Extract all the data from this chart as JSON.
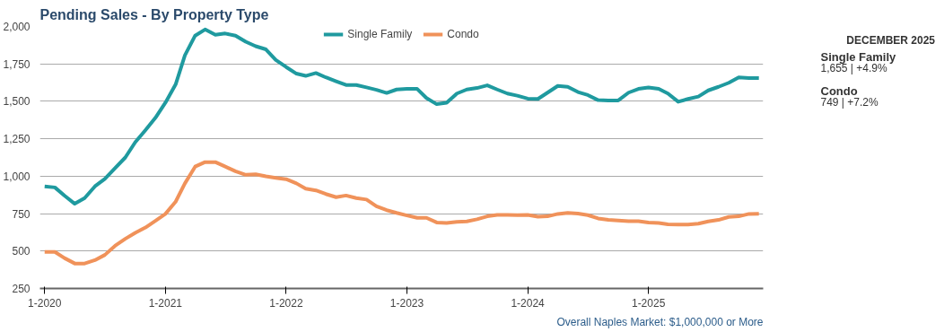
{
  "chart_data": [
    {
      "type": "line",
      "title": "Pending Sales - By Property Type",
      "x": [
        "2020-01",
        "2020-02",
        "2020-03",
        "2020-04",
        "2020-05",
        "2020-06",
        "2020-07",
        "2020-08",
        "2020-09",
        "2020-10",
        "2020-11",
        "2020-12",
        "2021-01",
        "2021-02",
        "2021-03",
        "2021-04",
        "2021-05",
        "2021-06",
        "2021-07",
        "2021-08",
        "2021-09",
        "2021-10",
        "2021-11",
        "2021-12",
        "2022-01",
        "2022-02",
        "2022-03",
        "2022-04",
        "2022-05",
        "2022-06",
        "2022-07",
        "2022-08",
        "2022-09",
        "2022-10",
        "2022-11",
        "2022-12",
        "2023-01",
        "2023-02",
        "2023-03",
        "2023-04",
        "2023-05",
        "2023-06",
        "2023-07",
        "2023-08",
        "2023-09",
        "2023-10",
        "2023-11",
        "2023-12",
        "2024-01",
        "2024-02",
        "2024-03",
        "2024-04",
        "2024-05",
        "2024-06",
        "2024-07",
        "2024-08",
        "2024-09",
        "2024-10",
        "2024-11",
        "2024-12",
        "2025-01",
        "2025-02",
        "2025-03",
        "2025-04",
        "2025-05",
        "2025-06",
        "2025-07",
        "2025-08",
        "2025-09",
        "2025-10",
        "2025-11",
        "2025-12"
      ],
      "series": [
        {
          "name": "Single Family",
          "color": "#1f9a9f",
          "values": [
            932,
            925,
            870,
            816,
            854,
            932,
            982,
            1054,
            1125,
            1227,
            1308,
            1390,
            1491,
            1613,
            1807,
            1939,
            1980,
            1945,
            1953,
            1939,
            1898,
            1868,
            1847,
            1776,
            1729,
            1685,
            1670,
            1689,
            1660,
            1634,
            1609,
            1609,
            1593,
            1577,
            1556,
            1579,
            1583,
            1583,
            1522,
            1481,
            1491,
            1552,
            1579,
            1589,
            1607,
            1579,
            1552,
            1538,
            1518,
            1516,
            1558,
            1603,
            1597,
            1562,
            1542,
            1508,
            1506,
            1506,
            1558,
            1583,
            1593,
            1583,
            1552,
            1497,
            1516,
            1532,
            1573,
            1597,
            1624,
            1660,
            1656,
            1655
          ]
        },
        {
          "name": "Condo",
          "color": "#f0925a",
          "values": [
            494,
            494,
            453,
            417,
            417,
            439,
            474,
            535,
            582,
            622,
            657,
            702,
            748,
            830,
            952,
            1064,
            1094,
            1094,
            1064,
            1033,
            1009,
            1013,
            999,
            989,
            980,
            952,
            917,
            905,
            881,
            860,
            871,
            854,
            844,
            799,
            773,
            755,
            738,
            722,
            722,
            691,
            687,
            695,
            698,
            712,
            732,
            742,
            742,
            740,
            742,
            730,
            732,
            748,
            755,
            750,
            740,
            718,
            708,
            704,
            700,
            700,
            691,
            687,
            679,
            677,
            677,
            683,
            698,
            708,
            728,
            732,
            748,
            749
          ]
        }
      ],
      "xlim": [
        "2019-12-18",
        "2025-12-14"
      ],
      "xticks": [
        {
          "value": "2020-01",
          "label": "1-2020"
        },
        {
          "value": "2021-01",
          "label": "1-2021"
        },
        {
          "value": "2022-01",
          "label": "1-2022"
        },
        {
          "value": "2023-01",
          "label": "1-2023"
        },
        {
          "value": "2024-01",
          "label": "1-2024"
        },
        {
          "value": "2025-01",
          "label": "1-2025"
        }
      ],
      "ylim": [
        250,
        2000
      ],
      "yticks": [
        250,
        500,
        750,
        {
          "value": 1000,
          "label": "1,000"
        },
        {
          "value": 1250,
          "label": "1,250"
        },
        {
          "value": 1500,
          "label": "1,500"
        },
        {
          "value": 1750,
          "label": "1,750"
        },
        {
          "value": 2000,
          "label": "2,000"
        }
      ],
      "grid": "y",
      "legend": "top",
      "line_style": "solid",
      "marker": "none",
      "annotations": [
        "Overall Naples Market: $1,000,000 or More"
      ]
    },
    {
      "type": "other",
      "title": "DECEMBER 2025",
      "annotations": [
        "Single Family",
        "1,655 | +4.9%",
        "Condo",
        "749 | +7.2%"
      ]
    }
  ]
}
